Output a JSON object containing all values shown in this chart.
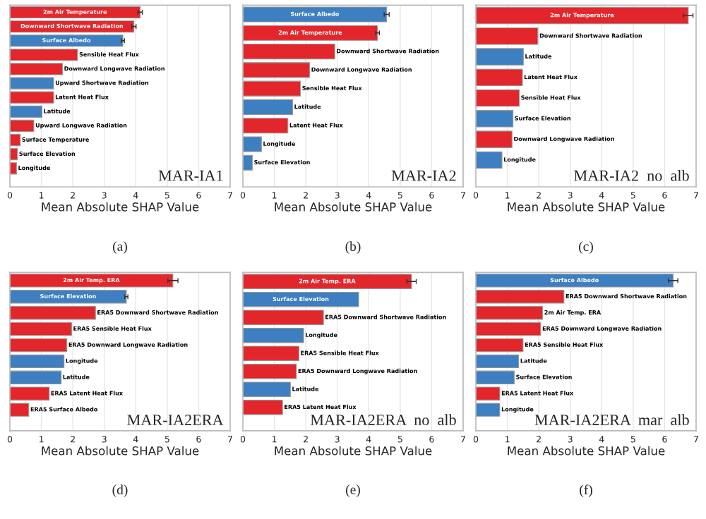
{
  "chart_data": [
    {
      "type": "bar",
      "orientation": "horizontal",
      "xlabel": "Mean Absolute SHAP Value",
      "xlim": [
        0,
        7
      ],
      "xticks": [
        0,
        1,
        2,
        3,
        4,
        5,
        6,
        7
      ],
      "grid": "x",
      "annotations": [
        "MAR-IA1",
        "(a)"
      ],
      "categories": [
        "2m Air Temperature",
        "Downward Shortwave Radiation",
        "Surface Albedo",
        "Sensible Heat Flux",
        "Downward Longwave Radiation",
        "Upward Shortwave Radiation",
        "Latent Heat Flux",
        "Latitude",
        "Upward Longwave Radiation",
        "Surface Temperature",
        "Surface Elevation",
        "Longitude"
      ],
      "values": [
        4.14,
        3.94,
        3.59,
        2.15,
        1.67,
        1.39,
        1.39,
        1.02,
        0.76,
        0.33,
        0.24,
        0.21
      ],
      "errors": [
        0.07,
        0.07,
        0.05,
        null,
        null,
        null,
        null,
        null,
        null,
        null,
        null,
        null
      ],
      "colors": [
        "#e3262b",
        "#e3262b",
        "#3d7fc0",
        "#e3262b",
        "#e3262b",
        "#3d7fc0",
        "#e3262b",
        "#3d7fc0",
        "#e3262b",
        "#e3262b",
        "#e3262b",
        "#e3262b"
      ]
    },
    {
      "type": "bar",
      "orientation": "horizontal",
      "xlabel": "Mean Absolute SHAP Value",
      "xlim": [
        0,
        7
      ],
      "xticks": [
        0,
        1,
        2,
        3,
        4,
        5,
        6,
        7
      ],
      "grid": "x",
      "annotations": [
        "MAR-IA2",
        "(b)"
      ],
      "categories": [
        "Surface Albedo",
        "2m Air Temperature",
        "Downward Shortwave Radiation",
        "Downward Longwave Radiation",
        "Sensible Heat Flux",
        "Latitude",
        "Latent Heat Flux",
        "Longitude",
        "Surface Elevation"
      ],
      "values": [
        4.57,
        4.28,
        2.92,
        2.12,
        1.83,
        1.58,
        1.43,
        0.59,
        0.3
      ],
      "errors": [
        0.08,
        0.06,
        null,
        null,
        null,
        null,
        null,
        null,
        null
      ],
      "colors": [
        "#3d7fc0",
        "#e3262b",
        "#e3262b",
        "#e3262b",
        "#e3262b",
        "#3d7fc0",
        "#e3262b",
        "#3d7fc0",
        "#3d7fc0"
      ]
    },
    {
      "type": "bar",
      "orientation": "horizontal",
      "xlabel": "Mean Absolute SHAP Value",
      "xlim": [
        0,
        7
      ],
      "xticks": [
        0,
        1,
        2,
        3,
        4,
        5,
        6,
        7
      ],
      "grid": "x",
      "annotations": [
        "MAR-IA2  no  alb",
        "(c)"
      ],
      "categories": [
        "2m Air Temperature",
        "Downward Shortwave Radiation",
        "Latitude",
        "Latent Heat Flux",
        "Sensible Heat Flux",
        "Surface Elevation",
        "Downward Longwave Radiation",
        "Longitude"
      ],
      "values": [
        6.75,
        1.97,
        1.51,
        1.48,
        1.38,
        1.18,
        1.15,
        0.83
      ],
      "errors": [
        0.15,
        null,
        null,
        null,
        null,
        null,
        null,
        null
      ],
      "colors": [
        "#e3262b",
        "#e3262b",
        "#3d7fc0",
        "#e3262b",
        "#e3262b",
        "#3d7fc0",
        "#e3262b",
        "#3d7fc0"
      ]
    },
    {
      "type": "bar",
      "orientation": "horizontal",
      "xlabel": "Mean Absolute SHAP Value",
      "xlim": [
        0,
        7
      ],
      "xticks": [
        0,
        1,
        2,
        3,
        4,
        5,
        6,
        7
      ],
      "grid": "x",
      "annotations": [
        "MAR-IA2ERA",
        "(d)"
      ],
      "categories": [
        "2m Air Temp. ERA",
        "Surface Elevation",
        "ERA5 Downward Shortwave Radiation",
        "ERA5 Sensible Heat Flux",
        "ERA5 Downward Longwave Radiation",
        "Longitude",
        "Latitude",
        "ERA5 Latent Heat Flux",
        "ERA5 Surface Albedo"
      ],
      "values": [
        5.18,
        3.7,
        2.72,
        1.96,
        1.81,
        1.72,
        1.63,
        1.25,
        0.6
      ],
      "errors": [
        0.16,
        0.05,
        null,
        null,
        null,
        null,
        null,
        null,
        null
      ],
      "colors": [
        "#e3262b",
        "#3d7fc0",
        "#e3262b",
        "#e3262b",
        "#e3262b",
        "#3d7fc0",
        "#3d7fc0",
        "#e3262b",
        "#e3262b"
      ]
    },
    {
      "type": "bar",
      "orientation": "horizontal",
      "xlabel": "Mean Absolute SHAP Value",
      "xlim": [
        0,
        7
      ],
      "xticks": [
        0,
        1,
        2,
        3,
        4,
        5,
        6,
        7
      ],
      "grid": "x",
      "annotations": [
        "MAR-IA2ERA  no  alb",
        "(e)"
      ],
      "categories": [
        "2m Air Temp. ERA",
        "Surface Elevation",
        "ERA5 Downward Shortwave Radiation",
        "Longitude",
        "ERA5 Sensible Heat Flux",
        "ERA5 Downward Longwave Radiation",
        "Latitude",
        "ERA5 Latent Heat Flux"
      ],
      "values": [
        5.36,
        3.68,
        2.56,
        1.93,
        1.78,
        1.7,
        1.51,
        1.26
      ],
      "errors": [
        0.15,
        null,
        null,
        null,
        null,
        null,
        null,
        null
      ],
      "colors": [
        "#e3262b",
        "#3d7fc0",
        "#e3262b",
        "#3d7fc0",
        "#e3262b",
        "#e3262b",
        "#3d7fc0",
        "#e3262b"
      ]
    },
    {
      "type": "bar",
      "orientation": "horizontal",
      "xlabel": "Mean Absolute SHAP Value",
      "xlim": [
        0,
        7
      ],
      "xticks": [
        0,
        1,
        2,
        3,
        4,
        5,
        6,
        7
      ],
      "grid": "x",
      "annotations": [
        "MAR-IA2ERA  mar  alb",
        "(f)"
      ],
      "categories": [
        "Surface Albedo",
        "ERA5 Downward Shortwave Radiation",
        "2m Air Temp. ERA",
        "ERA5 Downward Longwave Radiation",
        "ERA5 Sensible Heat Flux",
        "Latitude",
        "Surface Elevation",
        "ERA5 Latent Heat Flux",
        "Longitude"
      ],
      "values": [
        6.27,
        2.8,
        2.12,
        2.06,
        1.5,
        1.36,
        1.22,
        0.76,
        0.76
      ],
      "errors": [
        0.15,
        null,
        null,
        null,
        null,
        null,
        null,
        null,
        null
      ],
      "colors": [
        "#3d7fc0",
        "#e3262b",
        "#e3262b",
        "#e3262b",
        "#e3262b",
        "#3d7fc0",
        "#3d7fc0",
        "#e3262b",
        "#3d7fc0"
      ]
    }
  ]
}
